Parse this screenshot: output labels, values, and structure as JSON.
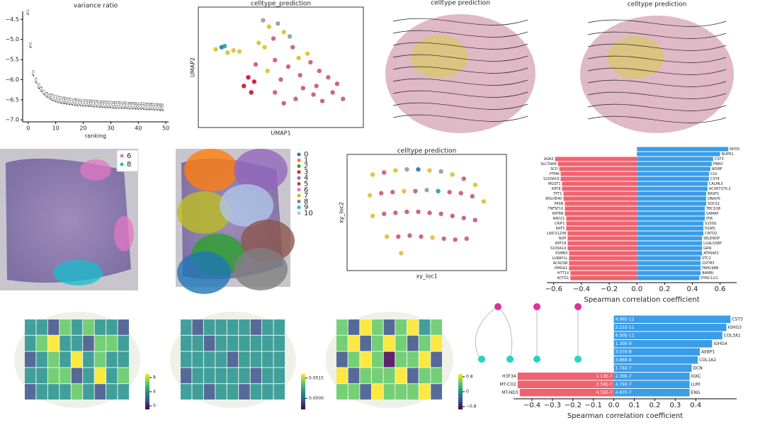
{
  "chart_data": [
    {
      "type": "scatter",
      "title": "variance ratio",
      "xlabel": "ranking",
      "x": [
        0,
        1,
        2,
        3,
        4,
        5,
        6,
        7,
        8,
        9,
        10,
        11,
        12,
        13,
        14,
        15,
        16,
        17,
        18,
        19,
        20,
        21,
        22,
        23,
        24,
        25,
        26,
        27,
        28,
        29,
        30,
        31,
        32,
        33,
        34,
        35,
        36,
        37,
        38,
        39,
        40,
        41,
        42,
        43,
        44,
        45,
        46,
        47,
        48,
        49
      ],
      "values": [
        -4.38,
        -5.2,
        -5.9,
        -6.08,
        -6.22,
        -6.3,
        -6.38,
        -6.44,
        -6.48,
        -6.52,
        -6.55,
        -6.57,
        -6.59,
        -6.6,
        -6.61,
        -6.62,
        -6.63,
        -6.64,
        -6.65,
        -6.65,
        -6.66,
        -6.66,
        -6.67,
        -6.67,
        -6.68,
        -6.68,
        -6.69,
        -6.69,
        -6.7,
        -6.7,
        -6.7,
        -6.71,
        -6.71,
        -6.71,
        -6.72,
        -6.72,
        -6.72,
        -6.73,
        -6.73,
        -6.73,
        -6.74,
        -6.74,
        -6.74,
        -6.75,
        -6.75,
        -6.75,
        -6.76,
        -6.76,
        -6.77,
        -6.77
      ],
      "point_labels": [
        "PC1",
        "PC2",
        "PC3",
        "PC4",
        "PC5",
        "PC6",
        "PC7",
        "PC8",
        "PC9",
        "PC10",
        "PC11",
        "PC12",
        "PC13",
        "PC14",
        "PC15",
        "PC16",
        "PC17",
        "PC18",
        "PC19",
        "PC20",
        "PC21",
        "PC22",
        "PC23",
        "PC24",
        "PC25",
        "PC26",
        "PC27",
        "PC28",
        "PC29",
        "PC30",
        "PC31",
        "PC32",
        "PC33",
        "PC34",
        "PC35",
        "PC36",
        "PC37",
        "PC38",
        "PC39",
        "PC40",
        "PC41",
        "PC42",
        "PC43",
        "PC44",
        "PC45",
        "PC46",
        "PC47",
        "PC48",
        "PC49",
        "PC50"
      ],
      "xlim": [
        -2,
        51
      ],
      "xticks": [
        0,
        10,
        20,
        30,
        40,
        50
      ],
      "ylim": [
        -7.05,
        -4.3
      ],
      "yticks": [
        {
          "value": -4.5,
          "label": "−4.5"
        },
        {
          "value": -5.0,
          "label": "−5.0"
        },
        {
          "value": -5.5,
          "label": "−5.5"
        },
        {
          "value": -6.0,
          "label": "−6.0"
        },
        {
          "value": -6.5,
          "label": "−6.5"
        },
        {
          "value": -7.0,
          "label": "−7.0"
        }
      ]
    },
    {
      "type": "embedding",
      "title": "celltype_prediction",
      "xlabel": "UMAP1",
      "ylabel": "UMAP2",
      "xlim": [
        0,
        10
      ],
      "ylim": [
        0,
        10
      ],
      "x": [
        0.6,
        1.0,
        1.4,
        1.8,
        1.2,
        2.2,
        3.8,
        4.2,
        4.8,
        5.2,
        4.5,
        5.6,
        3.5,
        3.9,
        2.8,
        3.2,
        2.5,
        4.6,
        5.5,
        6.2,
        7.0,
        7.6,
        8.2,
        8.8,
        6.5,
        7.2,
        6.0,
        5.2,
        4.6,
        7.8,
        8.5,
        6.8,
        5.8,
        3.3,
        6.3,
        4.1,
        5.0,
        7.4,
        9.2,
        3.0
      ],
      "y": [
        6.6,
        6.8,
        6.3,
        6.5,
        6.9,
        6.4,
        9.3,
        8.7,
        9.0,
        8.2,
        7.6,
        7.8,
        7.2,
        6.8,
        4.0,
        3.6,
        3.2,
        5.6,
        5.0,
        5.8,
        5.4,
        4.6,
        4.0,
        3.4,
        3.0,
        2.4,
        2.0,
        1.6,
        2.6,
        1.8,
        2.6,
        6.2,
        6.8,
        5.2,
        4.2,
        4.6,
        3.8,
        3.2,
        2.0,
        2.6
      ],
      "point_colors": [
        "#d8c12a",
        "#1f77b4",
        "#d8c12a",
        "#d8c12a",
        "#1f9fb4",
        "#d8c12a",
        "#999999",
        "#d8c12a",
        "#999999",
        "#d8c12a",
        "#c9557a",
        "#999999",
        "#d8c12a",
        "#d8c12a",
        "#c8102e",
        "#c8102e",
        "#c8102e",
        "#c9557a",
        "#c9557a",
        "#d8c12a",
        "#c9557a",
        "#c9557a",
        "#c9557a",
        "#c9557a",
        "#c9557a",
        "#c9557a",
        "#c9557a",
        "#c9557a",
        "#c9557a",
        "#c9557a",
        "#c9557a",
        "#d8c12a",
        "#c9557a",
        "#c9557a",
        "#c9557a",
        "#d8c12a",
        "#c9557a",
        "#c9557a",
        "#c9557a",
        "#c8102e"
      ]
    },
    {
      "type": "stream",
      "title": "celltype prediction"
    },
    {
      "type": "stream",
      "title": "celltype prediction"
    },
    {
      "type": "tissue",
      "legend_labels": [
        "6",
        "8"
      ],
      "legend_colors": [
        "#e377c2",
        "#17becf"
      ]
    },
    {
      "type": "tissue",
      "legend_labels": [
        "0",
        "1",
        "2",
        "3",
        "4",
        "5",
        "6",
        "7",
        "8",
        "9",
        "10"
      ],
      "legend_colors": [
        "#1f77b4",
        "#ff7f0e",
        "#2ca02c",
        "#d62728",
        "#9467bd",
        "#8c564b",
        "#e377c2",
        "#bcbd22",
        "#7f7f7f",
        "#17becf",
        "#aec7e8"
      ]
    },
    {
      "type": "embedding",
      "title": "celltype prediction",
      "xlabel": "xy_loc1",
      "ylabel": "xy_loc2",
      "xlim": [
        0,
        10
      ],
      "ylim": [
        0,
        10
      ],
      "x": [
        1.2,
        2.0,
        2.8,
        3.6,
        4.4,
        5.2,
        6.0,
        6.8,
        7.6,
        8.4,
        1.0,
        1.8,
        2.6,
        3.4,
        4.2,
        5.0,
        5.8,
        6.6,
        7.4,
        8.2,
        9.0,
        1.2,
        2.0,
        2.8,
        3.6,
        4.4,
        5.2,
        6.0,
        6.8,
        7.6,
        8.4,
        2.2,
        3.0,
        3.8,
        4.6,
        5.4,
        6.2,
        7.0,
        7.8,
        3.2
      ],
      "y": [
        8.6,
        8.8,
        9.0,
        9.1,
        9.1,
        9.0,
        8.9,
        8.6,
        8.2,
        7.6,
        6.6,
        6.8,
        6.9,
        7.0,
        7.0,
        7.1,
        7.0,
        6.9,
        6.8,
        6.5,
        6.0,
        4.6,
        4.8,
        4.9,
        5.0,
        5.0,
        4.9,
        4.8,
        4.6,
        4.4,
        4.2,
        2.6,
        2.6,
        2.7,
        2.6,
        2.5,
        2.4,
        2.3,
        2.4,
        1.0
      ],
      "point_colors": [
        "#d8c12a",
        "#c9557a",
        "#d8c12a",
        "#999999",
        "#1f77b4",
        "#d8c12a",
        "#999999",
        "#d8c12a",
        "#c9557a",
        "#d8c12a",
        "#d8c12a",
        "#c9557a",
        "#c9557a",
        "#d8c12a",
        "#c9557a",
        "#999999",
        "#1f9fb4",
        "#c9557a",
        "#c9557a",
        "#c9557a",
        "#d8c12a",
        "#d8c12a",
        "#c9557a",
        "#c9557a",
        "#c9557a",
        "#c9557a",
        "#c9557a",
        "#c9557a",
        "#c9557a",
        "#c9557a",
        "#c9557a",
        "#d8c12a",
        "#c9557a",
        "#c9557a",
        "#c9557a",
        "#d8c12a",
        "#c9557a",
        "#c9557a",
        "#c9557a",
        "#d8c12a"
      ]
    },
    {
      "type": "bar",
      "xlabel": "Spearman correlation coefficient",
      "color_negative": "#f0626e",
      "color_positive": "#3a9de8",
      "xlim": [
        -0.65,
        0.72
      ],
      "xticks": [
        {
          "value": -0.6,
          "label": "−0.6"
        },
        {
          "value": -0.4,
          "label": "−0.4"
        },
        {
          "value": -0.2,
          "label": "−0.2"
        },
        {
          "value": 0,
          "label": "0.0"
        },
        0.2,
        0.4,
        0.6
      ],
      "right_labels": [
        "APOD",
        "NUPR1",
        "CST3",
        "FBRO",
        "ADIRF",
        "CLU",
        "CST4",
        "CALML5",
        "AC087379.2",
        "BASP1",
        "DNAH5",
        "SOCS2",
        "TBC1D8",
        "SAMAP",
        "IFI6",
        "S100G",
        "H2AFJ",
        "CNTD2",
        "SELENOP",
        "LGALS3BP",
        "GRN",
        "ATP6AP1",
        "STC2",
        "GSTM3",
        "FAM198B",
        "BAMBI",
        "DYNC1LI1"
      ],
      "right_values": [
        0.66,
        0.6,
        0.55,
        0.54,
        0.53,
        0.52,
        0.52,
        0.51,
        0.51,
        0.5,
        0.5,
        0.5,
        0.49,
        0.49,
        0.49,
        0.48,
        0.48,
        0.48,
        0.47,
        0.47,
        0.47,
        0.47,
        0.46,
        0.46,
        0.46,
        0.46,
        0.45
      ],
      "left_labels": [
        null,
        null,
        "AGR2",
        "SLC39A6",
        "SCD",
        "PTMA",
        "S100A16",
        "MGST1",
        "KRT8",
        "TPT1",
        "BHLHE40",
        "FASN",
        "TNFSF10",
        "KRT6B",
        "RAD21",
        "CRIP1",
        "KRT5",
        "LINC01208",
        "NDP",
        "KRT18",
        "S100A14",
        "PSMB3",
        "LURAP1L",
        "ACADSB",
        "HMGA1",
        "HTT1X",
        "ACTG1"
      ],
      "left_values": [
        null,
        null,
        -0.59,
        -0.57,
        -0.56,
        -0.55,
        -0.55,
        -0.54,
        -0.54,
        -0.53,
        -0.53,
        -0.52,
        -0.52,
        -0.52,
        -0.51,
        -0.51,
        -0.51,
        -0.5,
        -0.5,
        -0.5,
        -0.5,
        -0.49,
        -0.49,
        -0.49,
        -0.49,
        -0.48,
        -0.48
      ]
    },
    {
      "type": "spatial",
      "clim": [
        -1,
        9
      ],
      "cticks": [
        0,
        4,
        8
      ],
      "cols": 9,
      "values": [
        3,
        5,
        2,
        6,
        4,
        7,
        3,
        5,
        2,
        4,
        6,
        8,
        3,
        5,
        2,
        6,
        7,
        4,
        2,
        5,
        7,
        4,
        8,
        3,
        6,
        5,
        3,
        5,
        3,
        6,
        7,
        2,
        5,
        8,
        4,
        6,
        1,
        4,
        3,
        5,
        6,
        4,
        2,
        5,
        3
      ]
    },
    {
      "type": "spatial",
      "clim": [
        -0.0008,
        0.0018
      ],
      "cticks": [
        {
          "value": 0,
          "label": "0.0000"
        },
        0.0015
      ],
      "cols": 9,
      "values": [
        0.0003,
        0.0001,
        0.0004,
        0.0002,
        0.0006,
        0.0003,
        0.0001,
        0.0002,
        0.0004,
        0.0002,
        0.0005,
        0.0001,
        0.0003,
        0.0002,
        0.0004,
        0.0005,
        0.0002,
        0.0003,
        0.0004,
        0.0002,
        0.0003,
        0.0006,
        0.0001,
        0.0002,
        0.0003,
        0.0004,
        0.0002,
        0.0001,
        0.0003,
        0.0002,
        0.0004,
        0.0003,
        0.0005,
        0.0001,
        0.0002,
        0.0003,
        0.0002,
        0.0004,
        0.0001,
        0.0003,
        0.0002,
        0.0001,
        0.0004,
        0.0003,
        0.0002
      ]
    },
    {
      "type": "spatial",
      "clim": [
        -0.95,
        0.95
      ],
      "cticks": [
        {
          "value": -0.8,
          "label": "−0.8"
        },
        0.0,
        0.8
      ],
      "cols": 9,
      "values": [
        0.6,
        -0.4,
        0.8,
        0.7,
        -0.6,
        0.5,
        0.8,
        -0.2,
        0.6,
        0.7,
        0.8,
        -0.7,
        0.5,
        0.8,
        0.6,
        -0.5,
        0.7,
        0.8,
        -0.6,
        0.7,
        0.8,
        0.4,
        -0.8,
        0.7,
        0.6,
        0.8,
        -0.3,
        0.8,
        -0.5,
        0.6,
        0.7,
        0.5,
        0.8,
        -0.7,
        0.6,
        0.7,
        0.5,
        0.7,
        -0.6,
        0.8,
        0.6,
        0.7,
        0.4,
        0.8,
        -0.5
      ]
    },
    {
      "type": "bar",
      "xlabel": "Spearman correlation coefficient",
      "color_negative": "#f0626e",
      "color_positive": "#3a9de8",
      "xlim": [
        -0.49,
        0.6
      ],
      "xticks": [
        {
          "value": -0.4,
          "label": "−0.4"
        },
        {
          "value": -0.3,
          "label": "−0.3"
        },
        {
          "value": -0.2,
          "label": "−0.2"
        },
        {
          "value": -0.1,
          "label": "−0.1"
        },
        {
          "value": 0,
          "label": "0.0"
        },
        0.1,
        0.2,
        0.3,
        0.4
      ],
      "right_labels": [
        "CST3",
        "IGHG3",
        "COL3A1",
        "IGHG4",
        "AEBP1",
        "COL1A2",
        "DCN",
        "IGKC",
        "LUM",
        "ENG"
      ],
      "right_values": [
        0.57,
        0.55,
        0.53,
        0.48,
        0.42,
        0.41,
        0.38,
        0.37,
        0.37,
        0.37
      ],
      "right_annotations": [
        "4.96E-12",
        "2.21E-11",
        "6.50E-11",
        "1.30E-9",
        "3.07E-8",
        "3.86E-8",
        "1.74E-7",
        "2.30E-7",
        "4.74E-7",
        "4.87E-7"
      ],
      "left_labels": [
        null,
        null,
        null,
        null,
        null,
        null,
        null,
        "H3F3A",
        "MT-CO2",
        "MT-ND3"
      ],
      "left_values": [
        null,
        null,
        null,
        null,
        null,
        null,
        null,
        -0.47,
        -0.47,
        -0.46
      ],
      "left_annotations": [
        null,
        null,
        null,
        null,
        null,
        null,
        null,
        "1.13E-7",
        "2.34E-7",
        "4.35E-7"
      ]
    }
  ]
}
